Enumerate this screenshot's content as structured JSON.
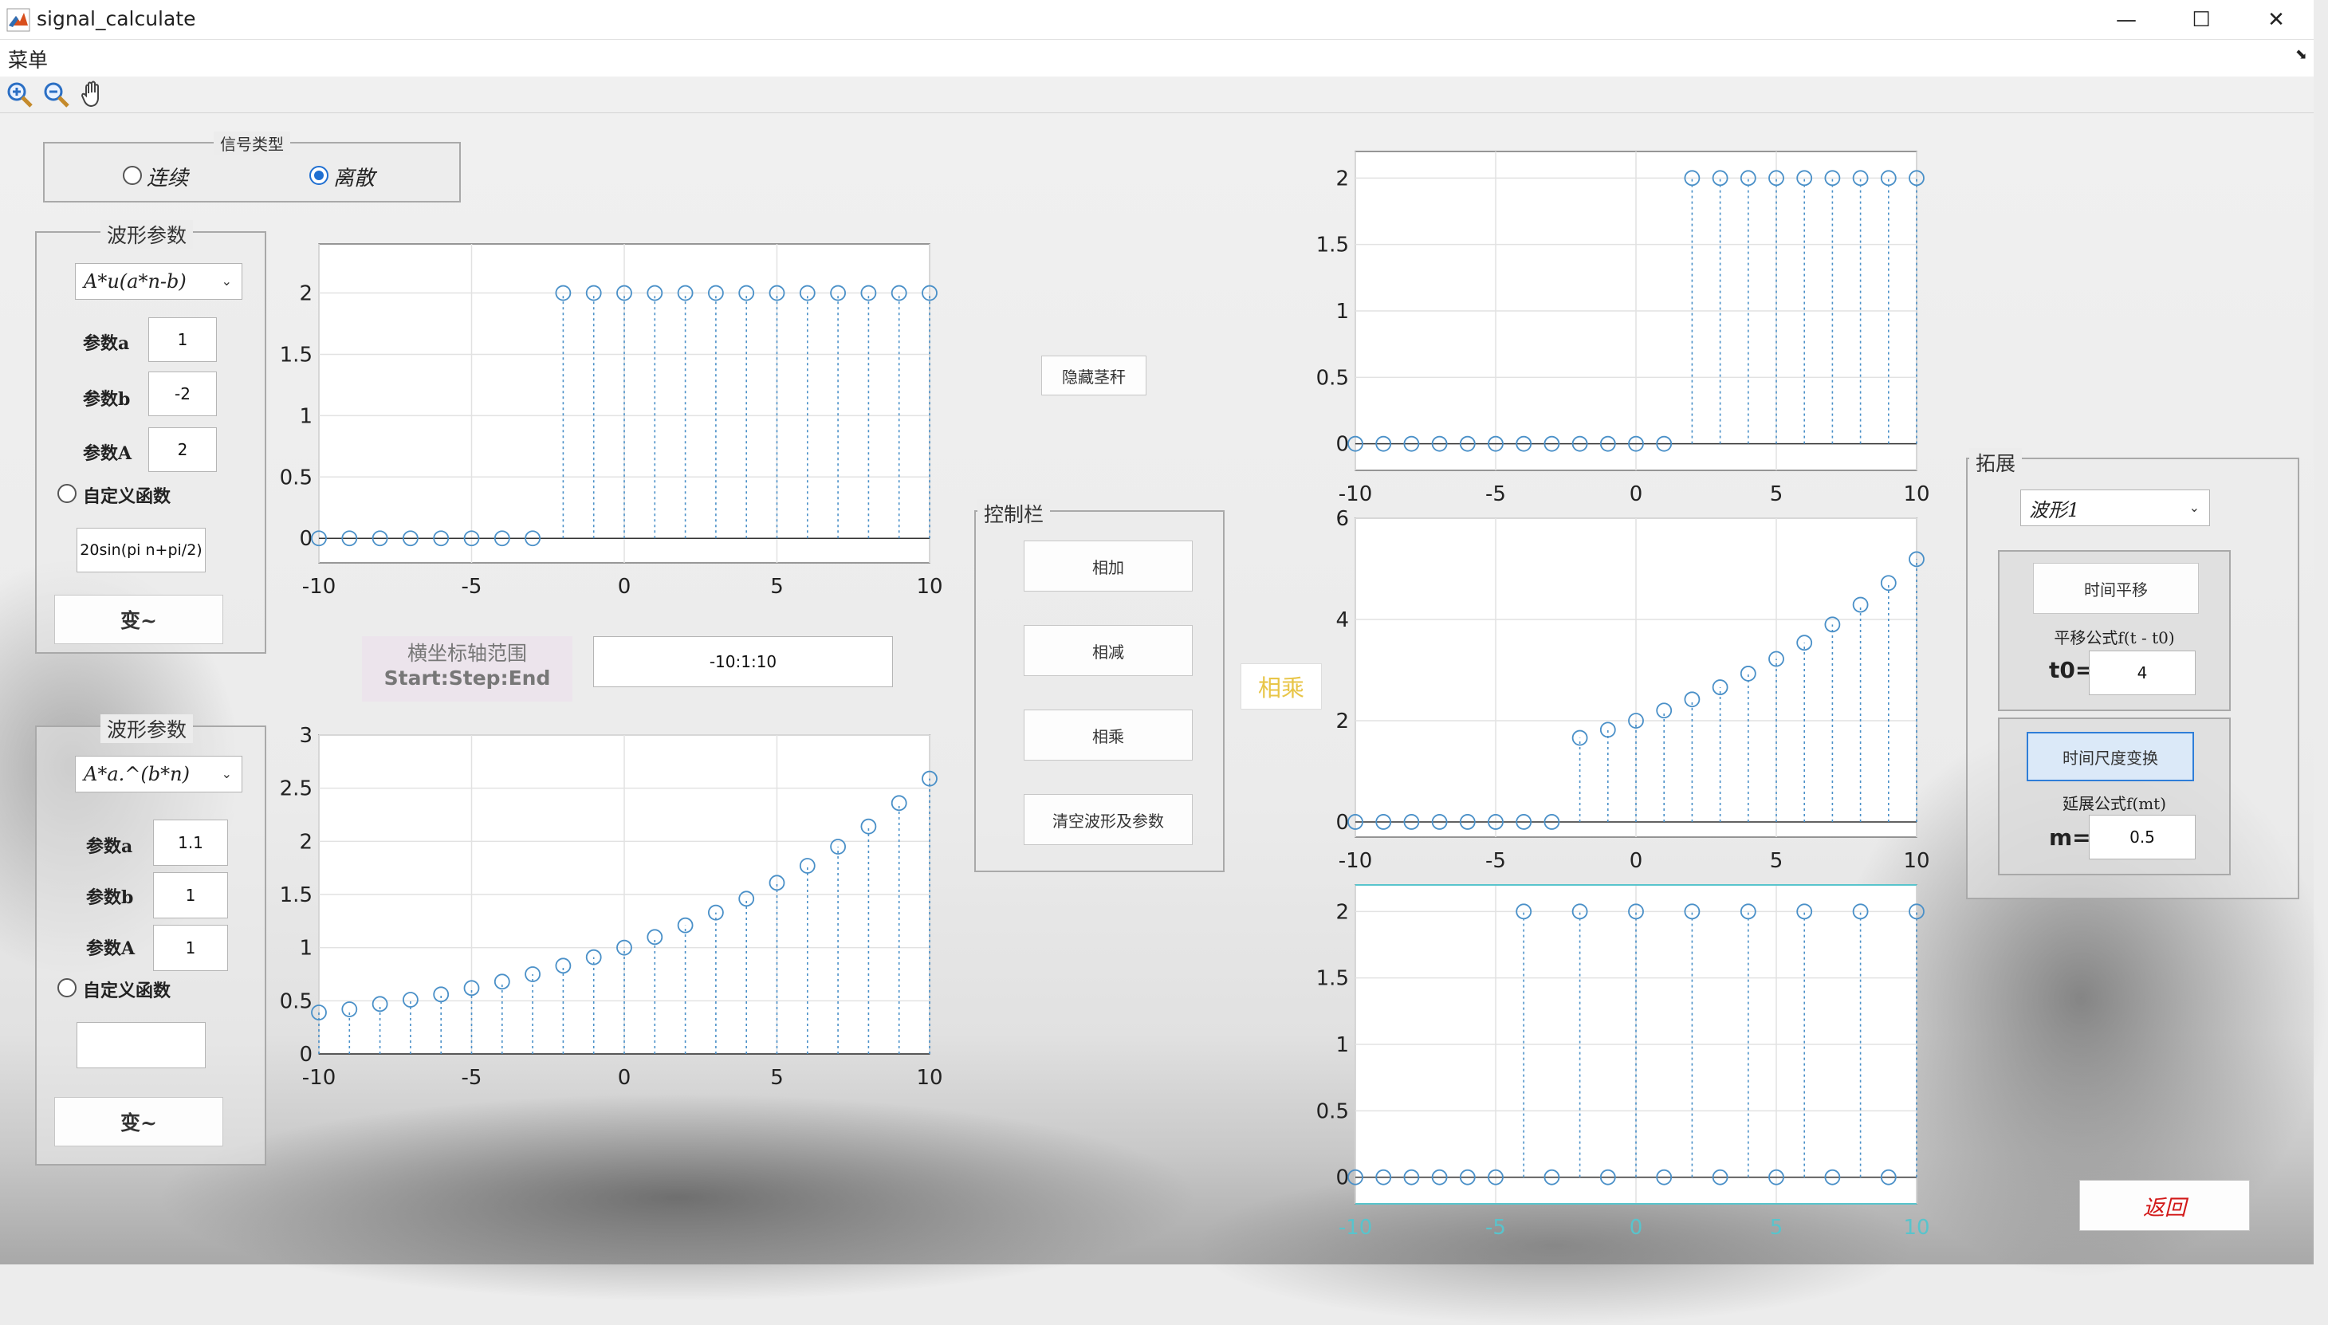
{
  "window": {
    "title": "signal_calculate",
    "minimize": "—",
    "maximize": "☐",
    "close": "✕"
  },
  "menubar": {
    "menu": "菜单"
  },
  "toolbar": {
    "tools": [
      "zoom-in-icon",
      "zoom-out-icon",
      "pan-hand-icon"
    ]
  },
  "signal_type": {
    "title": "信号类型",
    "continuous": "连续",
    "discrete": "离散",
    "selected": "discrete"
  },
  "wave1": {
    "title": "波形参数",
    "func": "A*u(a*n-b)",
    "a_label": "参数a",
    "a": "1",
    "b_label": "参数b",
    "b": "-2",
    "A_label": "参数A",
    "A": "2",
    "custom_label": "自定义函数",
    "custom": "20sin(pi n+pi/2)",
    "transform": "变~"
  },
  "wave2": {
    "title": "波形参数",
    "func": "A*a.^(b*n)",
    "a_label": "参数a",
    "a": "1.1",
    "b_label": "参数b",
    "b": "1",
    "A_label": "参数A",
    "A": "1",
    "custom_label": "自定义函数",
    "custom": "",
    "transform": "变~"
  },
  "axis_range": {
    "label1": "横坐标轴范围",
    "label2": "Start:Step:End",
    "value": "-10:1:10"
  },
  "hide_stem": "隐藏茎秆",
  "control": {
    "title": "控制栏",
    "add": "相加",
    "subtract": "相减",
    "multiply": "相乘",
    "clear": "清空波形及参数"
  },
  "operation_label": "相乘",
  "extend": {
    "title": "拓展",
    "wave_select": "波形1",
    "shift_button": "时间平移",
    "shift_formula": "平移公式f(t - t0)",
    "t0_label": "t0=",
    "t0": "4",
    "scale_button": "时间尺度变换",
    "scale_formula": "延展公式f(mt)",
    "m_label": "m=",
    "m": "0.5"
  },
  "back": "返回",
  "colors": {
    "stem": "#4a90c8",
    "marker": "#4a90c8",
    "accent": "#1f6fd1",
    "back_text": "#d21818",
    "op_label": "#e8c547"
  },
  "chart_data": [
    {
      "id": "chart1",
      "type": "scatter",
      "style": "stem",
      "x": [
        -10,
        -9,
        -8,
        -7,
        -6,
        -5,
        -4,
        -3,
        -2,
        -1,
        0,
        1,
        2,
        3,
        4,
        5,
        6,
        7,
        8,
        9,
        10
      ],
      "values": [
        0,
        0,
        0,
        0,
        0,
        0,
        0,
        0,
        2,
        2,
        2,
        2,
        2,
        2,
        2,
        2,
        2,
        2,
        2,
        2,
        2
      ],
      "xlim": [
        -10,
        10
      ],
      "ylim": [
        -0.2,
        2.4
      ],
      "xticks": [
        -10,
        -5,
        0,
        5,
        10
      ],
      "yticks": [
        0,
        0.5,
        1,
        1.5,
        2
      ],
      "grid": true
    },
    {
      "id": "chart2",
      "type": "scatter",
      "style": "stem",
      "x": [
        -10,
        -9,
        -8,
        -7,
        -6,
        -5,
        -4,
        -3,
        -2,
        -1,
        0,
        1,
        2,
        3,
        4,
        5,
        6,
        7,
        8,
        9,
        10
      ],
      "values": [
        0.39,
        0.42,
        0.47,
        0.51,
        0.56,
        0.62,
        0.68,
        0.75,
        0.83,
        0.91,
        1,
        1.1,
        1.21,
        1.33,
        1.46,
        1.61,
        1.77,
        1.95,
        2.14,
        2.36,
        2.59
      ],
      "xlim": [
        -10,
        10
      ],
      "ylim": [
        0,
        3
      ],
      "xticks": [
        -10,
        -5,
        0,
        5,
        10
      ],
      "yticks": [
        0,
        0.5,
        1,
        1.5,
        2,
        2.5,
        3
      ],
      "grid": true
    },
    {
      "id": "chart3",
      "type": "scatter",
      "style": "stem",
      "x": [
        -10,
        -9,
        -8,
        -7,
        -6,
        -5,
        -4,
        -3,
        -2,
        -1,
        0,
        1,
        2,
        3,
        4,
        5,
        6,
        7,
        8,
        9,
        10
      ],
      "values": [
        0,
        0,
        0,
        0,
        0,
        0,
        0,
        0,
        0,
        0,
        0,
        0,
        2,
        2,
        2,
        2,
        2,
        2,
        2,
        2,
        2
      ],
      "xlim": [
        -10,
        10
      ],
      "ylim": [
        -0.2,
        2.2
      ],
      "xticks": [
        -10,
        -5,
        0,
        5,
        10
      ],
      "yticks": [
        0,
        0.5,
        1,
        1.5,
        2
      ],
      "grid": true
    },
    {
      "id": "chart4",
      "type": "scatter",
      "style": "stem",
      "x": [
        -10,
        -9,
        -8,
        -7,
        -6,
        -5,
        -4,
        -3,
        -2,
        -1,
        0,
        1,
        2,
        3,
        4,
        5,
        6,
        7,
        8,
        9,
        10
      ],
      "values": [
        0,
        0,
        0,
        0,
        0,
        0,
        0,
        0,
        1.66,
        1.82,
        2,
        2.2,
        2.42,
        2.66,
        2.93,
        3.22,
        3.54,
        3.9,
        4.29,
        4.72,
        5.19
      ],
      "xlim": [
        -10,
        10
      ],
      "ylim": [
        -0.3,
        6
      ],
      "xticks": [
        -10,
        -5,
        0,
        5,
        10
      ],
      "yticks": [
        0,
        2,
        4,
        6
      ],
      "grid": true
    },
    {
      "id": "chart5",
      "type": "scatter",
      "style": "stem",
      "x": [
        -10,
        -9,
        -8,
        -7,
        -6,
        -5,
        -4,
        -2,
        0,
        2,
        4,
        6,
        8,
        10,
        -3,
        -1,
        1,
        3,
        5,
        7,
        9
      ],
      "values": [
        0,
        0,
        0,
        0,
        0,
        0,
        2,
        2,
        2,
        2,
        2,
        2,
        2,
        2,
        0,
        0,
        0,
        0,
        0,
        0,
        0
      ],
      "xlim": [
        -10,
        10
      ],
      "ylim": [
        -0.2,
        2.2
      ],
      "xticks": [
        -10,
        -5,
        0,
        5,
        10
      ],
      "yticks": [
        0,
        0.5,
        1,
        1.5,
        2
      ],
      "grid": true
    }
  ]
}
